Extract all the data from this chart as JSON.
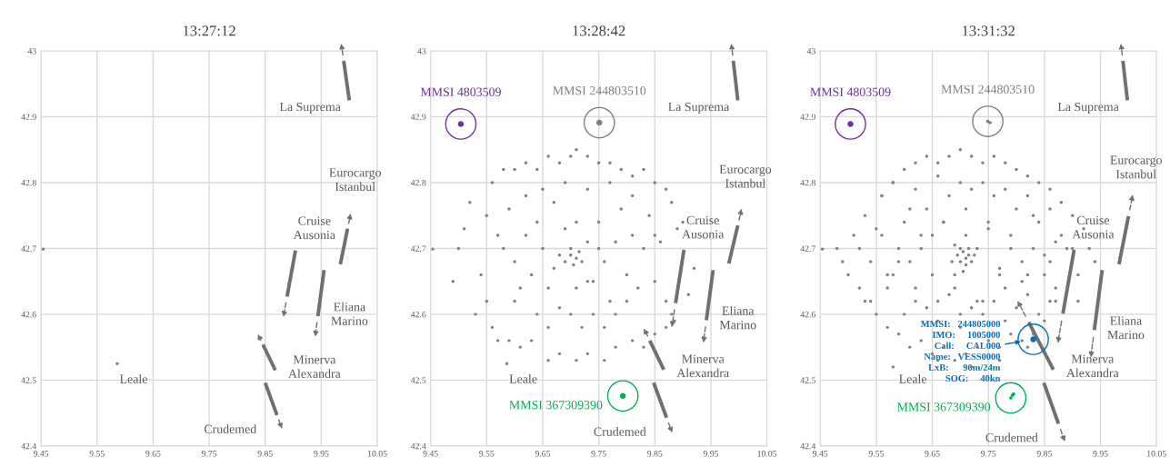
{
  "chart_data": [
    {
      "type": "scatter",
      "title": "13:27:12",
      "xlim": [
        9.45,
        10.05
      ],
      "ylim": [
        42.4,
        43
      ],
      "xticks": [
        9.45,
        9.55,
        9.65,
        9.75,
        9.85,
        9.95,
        10.05
      ],
      "yticks": [
        42.4,
        42.5,
        42.6,
        42.7,
        42.8,
        42.9,
        43
      ],
      "grid": true,
      "series": [
        {
          "type": "scatter",
          "color": "#808080",
          "x": [
            9.454,
            9.586
          ],
          "values": [
            42.699,
            42.525
          ]
        },
        {
          "type": "line",
          "line_style": "solid",
          "color": "#707070",
          "x": [
            10.0,
            9.99
          ],
          "values": [
            42.925,
            42.985
          ]
        },
        {
          "type": "line",
          "line_style": "solid",
          "color": "#707070",
          "x": [
            9.984,
            9.997
          ],
          "values": [
            42.676,
            42.73
          ]
        },
        {
          "type": "line",
          "line_style": "solid",
          "color": "#707070",
          "x": [
            9.904,
            9.889
          ],
          "values": [
            42.697,
            42.627
          ]
        },
        {
          "type": "line",
          "line_style": "solid",
          "color": "#707070",
          "x": [
            9.955,
            9.944
          ],
          "values": [
            42.667,
            42.597
          ]
        },
        {
          "type": "line",
          "line_style": "solid",
          "color": "#707070",
          "x": [
            9.868,
            9.846
          ],
          "values": [
            42.515,
            42.554
          ]
        },
        {
          "type": "line",
          "line_style": "solid",
          "color": "#707070",
          "x": [
            9.85,
            9.871
          ],
          "values": [
            42.496,
            42.447
          ]
        }
      ],
      "annotations": [
        {
          "text": "La Suprema",
          "x": 10.0,
          "y": 42.925
        },
        {
          "text": "Eurocargo\nIstanbul",
          "x": 9.997,
          "y": 42.73
        },
        {
          "text": "Cruise\nAusonia",
          "x": 9.904,
          "y": 42.697
        },
        {
          "text": "Eliana\nMarino",
          "x": 9.944,
          "y": 42.597
        },
        {
          "text": "Minerva\nAlexandra",
          "x": 9.868,
          "y": 42.515
        },
        {
          "text": "Crudemed",
          "x": 9.871,
          "y": 42.447
        },
        {
          "text": "Leale",
          "x": 9.586,
          "y": 42.525
        }
      ]
    },
    {
      "type": "scatter",
      "title": "13:28:42",
      "xlim": [
        9.45,
        10.05
      ],
      "ylim": [
        42.4,
        43
      ],
      "xticks": [
        9.45,
        9.55,
        9.65,
        9.75,
        9.85,
        9.95,
        10.05
      ],
      "yticks": [
        42.4,
        42.5,
        42.6,
        42.7,
        42.8,
        42.9,
        43
      ],
      "grid": true,
      "series": [
        {
          "type": "scatter",
          "color": "#808080",
          "x": [
            9.454,
            9.586,
            9.5,
            9.49,
            9.51,
            9.52,
            9.53,
            9.54,
            9.55,
            9.56,
            9.55,
            9.56,
            9.58,
            9.6,
            9.62,
            9.64,
            9.66,
            9.68,
            9.7,
            9.71,
            9.73,
            9.75,
            9.77,
            9.79,
            9.81,
            9.83,
            9.85,
            9.87,
            9.88,
            9.89,
            9.9,
            9.92,
            9.91,
            9.88,
            9.87,
            9.85,
            9.83,
            9.81,
            9.78,
            9.76,
            9.73,
            9.71,
            9.68,
            9.66,
            9.63,
            9.61,
            9.59,
            9.57,
            9.58,
            9.6,
            9.62,
            9.63,
            9.64,
            9.65,
            9.66,
            9.67,
            9.68,
            9.69,
            9.7,
            9.71,
            9.715,
            9.72,
            9.705,
            9.7,
            9.73,
            9.74,
            9.75,
            9.76,
            9.77,
            9.78,
            9.79,
            9.8,
            9.81,
            9.82,
            9.83,
            9.84,
            9.85,
            9.86,
            9.87,
            9.62,
            9.6,
            9.64,
            9.66,
            9.68,
            9.7,
            9.72,
            9.74,
            9.76,
            9.78,
            9.8,
            9.57,
            9.59,
            9.61,
            9.65,
            9.69,
            9.73,
            9.77,
            9.81,
            9.85,
            9.69,
            9.73,
            9.67,
            9.75,
            9.71,
            9.71,
            9.885
          ],
          "values": [
            42.699,
            42.525,
            42.7,
            42.65,
            42.73,
            42.77,
            42.6,
            42.66,
            42.62,
            42.58,
            42.75,
            42.8,
            42.82,
            42.82,
            42.83,
            42.82,
            42.84,
            42.83,
            42.84,
            42.85,
            42.84,
            42.83,
            42.83,
            42.82,
            42.81,
            42.82,
            42.8,
            42.79,
            42.77,
            42.73,
            42.74,
            42.67,
            42.63,
            42.6,
            42.58,
            42.57,
            42.55,
            42.56,
            42.55,
            42.53,
            42.54,
            42.53,
            42.54,
            42.53,
            42.56,
            42.55,
            42.56,
            42.56,
            42.7,
            42.68,
            42.72,
            42.66,
            42.74,
            42.7,
            42.64,
            42.77,
            42.69,
            42.68,
            42.69,
            42.685,
            42.695,
            42.68,
            42.675,
            42.7,
            42.71,
            42.65,
            42.74,
            42.68,
            42.62,
            42.71,
            42.76,
            42.66,
            42.72,
            42.64,
            42.7,
            42.75,
            42.65,
            42.71,
            42.62,
            42.78,
            42.62,
            42.6,
            42.58,
            42.61,
            42.6,
            42.58,
            42.6,
            42.58,
            42.6,
            42.62,
            42.72,
            42.76,
            42.64,
            42.79,
            42.8,
            42.79,
            42.8,
            42.78,
            42.72,
            42.73,
            42.65,
            42.67,
            42.7,
            42.64,
            42.74,
            42.59
          ]
        },
        {
          "type": "line",
          "line_style": "solid",
          "color": "#707070",
          "x": [
            9.998,
            9.99
          ],
          "values": [
            42.925,
            42.985
          ]
        },
        {
          "type": "line",
          "line_style": "solid",
          "color": "#707070",
          "x": [
            9.982,
            9.998
          ],
          "values": [
            42.677,
            42.735
          ]
        },
        {
          "type": "line",
          "line_style": "solid",
          "color": "#707070",
          "x": [
            9.902,
            9.887
          ],
          "values": [
            42.698,
            42.617
          ]
        },
        {
          "type": "line",
          "line_style": "solid",
          "color": "#707070",
          "x": [
            9.954,
            9.942
          ],
          "values": [
            42.667,
            42.591
          ]
        },
        {
          "type": "line",
          "line_style": "solid",
          "color": "#707070",
          "x": [
            9.866,
            9.841
          ],
          "values": [
            42.516,
            42.56
          ]
        },
        {
          "type": "line",
          "line_style": "solid",
          "color": "#707070",
          "x": [
            9.848,
            9.871
          ],
          "values": [
            42.496,
            42.443
          ]
        },
        {
          "type": "scatter",
          "name": "MMSI 4803509",
          "color": "#7030a0",
          "x": [
            9.504
          ],
          "values": [
            42.889
          ]
        },
        {
          "type": "scatter",
          "name": "MMSI 244803510",
          "color": "#7f7f7f",
          "x": [
            9.751
          ],
          "values": [
            42.891
          ]
        },
        {
          "type": "scatter",
          "name": "MMSI 367309390",
          "color": "#00b050",
          "x": [
            9.793
          ],
          "values": [
            42.476
          ]
        }
      ],
      "annotations": [
        {
          "text": "La Suprema",
          "x": 9.998,
          "y": 42.925
        },
        {
          "text": "Eurocargo\nIstanbul",
          "x": 9.998,
          "y": 42.735
        },
        {
          "text": "Cruise\nAusonia",
          "x": 9.902,
          "y": 42.698
        },
        {
          "text": "Eliana\nMarino",
          "x": 9.942,
          "y": 42.591
        },
        {
          "text": "Minerva\nAlexandra",
          "x": 9.866,
          "y": 42.516
        },
        {
          "text": "Crudemed",
          "x": 9.871,
          "y": 42.443
        },
        {
          "text": "Leale",
          "x": 9.586,
          "y": 42.525
        }
      ]
    },
    {
      "type": "scatter",
      "title": "13:31:32",
      "xlim": [
        9.45,
        10.05
      ],
      "ylim": [
        42.4,
        43
      ],
      "xticks": [
        9.45,
        9.55,
        9.65,
        9.75,
        9.85,
        9.95,
        10.05
      ],
      "yticks": [
        42.4,
        42.5,
        42.6,
        42.7,
        42.8,
        42.9,
        43
      ],
      "grid": true,
      "series": [
        {
          "type": "scatter",
          "color": "#808080",
          "x": [
            9.454,
            9.48,
            9.49,
            9.5,
            9.51,
            9.52,
            9.53,
            9.54,
            9.55,
            9.56,
            9.57,
            9.58,
            9.59,
            9.6,
            9.61,
            9.62,
            9.63,
            9.64,
            9.65,
            9.66,
            9.67,
            9.68,
            9.69,
            9.7,
            9.71,
            9.72,
            9.73,
            9.74,
            9.75,
            9.76,
            9.77,
            9.78,
            9.79,
            9.8,
            9.81,
            9.82,
            9.83,
            9.84,
            9.85,
            9.86,
            9.87,
            9.88,
            9.89,
            9.9,
            9.91,
            9.92,
            9.93,
            9.94,
            9.52,
            9.54,
            9.56,
            9.58,
            9.6,
            9.62,
            9.64,
            9.66,
            9.68,
            9.7,
            9.72,
            9.74,
            9.76,
            9.78,
            9.8,
            9.82,
            9.84,
            9.86,
            9.88,
            9.9,
            9.53,
            9.55,
            9.57,
            9.59,
            9.61,
            9.63,
            9.65,
            9.67,
            9.69,
            9.71,
            9.73,
            9.75,
            9.77,
            9.79,
            9.81,
            9.83,
            9.85,
            9.87,
            9.89,
            9.91,
            9.695,
            9.7,
            9.705,
            9.71,
            9.715,
            9.72,
            9.7,
            9.71,
            9.69,
            9.725,
            9.685,
            9.705,
            9.715,
            9.6,
            9.62,
            9.64,
            9.66,
            9.68,
            9.7,
            9.72,
            9.74,
            9.76,
            9.78,
            9.8,
            9.82,
            9.84,
            9.86,
            9.56,
            9.58,
            9.62,
            9.66,
            9.7,
            9.74,
            9.78,
            9.82,
            9.86,
            9.57,
            9.59,
            9.61,
            9.63,
            9.65,
            9.67,
            9.69,
            9.71,
            9.73,
            9.75,
            9.77,
            9.79,
            9.81,
            9.83,
            9.85,
            9.87,
            9.58,
            9.66,
            9.72,
            9.77,
            9.82
          ],
          "values": [
            42.699,
            42.7,
            42.68,
            42.66,
            42.72,
            42.64,
            42.75,
            42.62,
            42.6,
            42.78,
            42.58,
            42.8,
            42.57,
            42.82,
            42.55,
            42.83,
            42.56,
            42.84,
            42.54,
            42.83,
            42.55,
            42.84,
            42.53,
            42.85,
            42.54,
            42.84,
            42.55,
            42.83,
            42.56,
            42.84,
            42.55,
            42.83,
            42.57,
            42.82,
            42.56,
            42.81,
            42.57,
            42.8,
            42.59,
            42.79,
            42.62,
            42.77,
            42.64,
            42.75,
            42.66,
            42.73,
            42.7,
            42.68,
            42.7,
            42.68,
            42.72,
            42.66,
            42.74,
            42.64,
            42.76,
            42.62,
            42.78,
            42.6,
            42.79,
            42.62,
            42.78,
            42.64,
            42.76,
            42.66,
            42.74,
            42.68,
            42.72,
            42.7,
            42.62,
            42.73,
            42.66,
            42.7,
            42.68,
            42.72,
            42.66,
            42.74,
            42.64,
            42.76,
            42.62,
            42.74,
            42.66,
            42.72,
            42.68,
            42.7,
            42.66,
            42.64,
            42.7,
            42.62,
            42.69,
            42.68,
            42.695,
            42.685,
            42.69,
            42.68,
            42.7,
            42.675,
            42.705,
            42.69,
            42.68,
            42.665,
            42.7,
            42.6,
            42.62,
            42.61,
            42.59,
            42.63,
            42.58,
            42.61,
            42.6,
            42.62,
            42.59,
            42.61,
            42.63,
            42.6,
            42.62,
            42.78,
            42.8,
            42.79,
            42.81,
            42.8,
            42.8,
            42.79,
            42.78,
            42.76,
            42.64,
            42.68,
            42.76,
            42.7,
            42.72,
            42.74,
            42.66,
            42.72,
            42.7,
            42.73,
            42.67,
            42.7,
            42.65,
            42.75,
            42.69,
            42.71,
            42.52,
            42.53,
            42.52,
            42.53,
            42.55
          ]
        },
        {
          "type": "line",
          "line_style": "solid",
          "color": "#707070",
          "x": [
            9.998,
            9.99
          ],
          "values": [
            42.925,
            42.985
          ]
        },
        {
          "type": "line",
          "line_style": "solid",
          "color": "#707070",
          "x": [
            9.983,
            10.0
          ],
          "values": [
            42.676,
            42.749
          ]
        },
        {
          "type": "line",
          "line_style": "solid",
          "color": "#707070",
          "x": [
            9.903,
            9.883
          ],
          "values": [
            42.698,
            42.601
          ]
        },
        {
          "type": "line",
          "line_style": "solid",
          "color": "#707070",
          "x": [
            9.953,
            9.939
          ],
          "values": [
            42.667,
            42.576
          ]
        },
        {
          "type": "line",
          "line_style": "solid",
          "color": "#707070",
          "x": [
            9.866,
            9.822
          ],
          "values": [
            42.516,
            42.588
          ]
        },
        {
          "type": "line",
          "line_style": "solid",
          "color": "#707070",
          "x": [
            9.849,
            9.875
          ],
          "values": [
            42.496,
            42.434
          ]
        },
        {
          "type": "scatter",
          "name": "MMSI 4803509",
          "color": "#7030a0",
          "x": [
            9.504
          ],
          "values": [
            42.889
          ]
        },
        {
          "type": "scatter",
          "name": "MMSI 244803510",
          "color": "#7f7f7f",
          "x": [
            9.749,
            9.753
          ],
          "values": [
            42.893,
            42.891
          ]
        },
        {
          "type": "scatter",
          "name": "MMSI 367309390",
          "color": "#00b050",
          "x": [
            9.79,
            9.793,
            9.795
          ],
          "values": [
            42.473,
            42.477,
            42.479
          ]
        },
        {
          "type": "scatter",
          "name": "MMSI:   244805000\nIMO:     1005000\nCall:     CAL000\nName:   VESS0000\nLxB:      90m/24m\nSOG:     40kn",
          "color": "#0070c0",
          "x": [
            9.83
          ],
          "values": [
            42.562
          ]
        }
      ],
      "annotations": [
        {
          "text": "La Suprema",
          "x": 9.998,
          "y": 42.925
        },
        {
          "text": "Eurocargo\nIstanbul",
          "x": 10.0,
          "y": 42.749
        },
        {
          "text": "Cruise\nAusonia",
          "x": 9.903,
          "y": 42.698
        },
        {
          "text": "Eliana\nMarino",
          "x": 9.939,
          "y": 42.576
        },
        {
          "text": "Minerva\nAlexandra",
          "x": 9.866,
          "y": 42.516
        },
        {
          "text": "Crudemed",
          "x": 9.875,
          "y": 42.434
        },
        {
          "text": "Leale",
          "x": 9.586,
          "y": 42.525
        }
      ]
    }
  ]
}
